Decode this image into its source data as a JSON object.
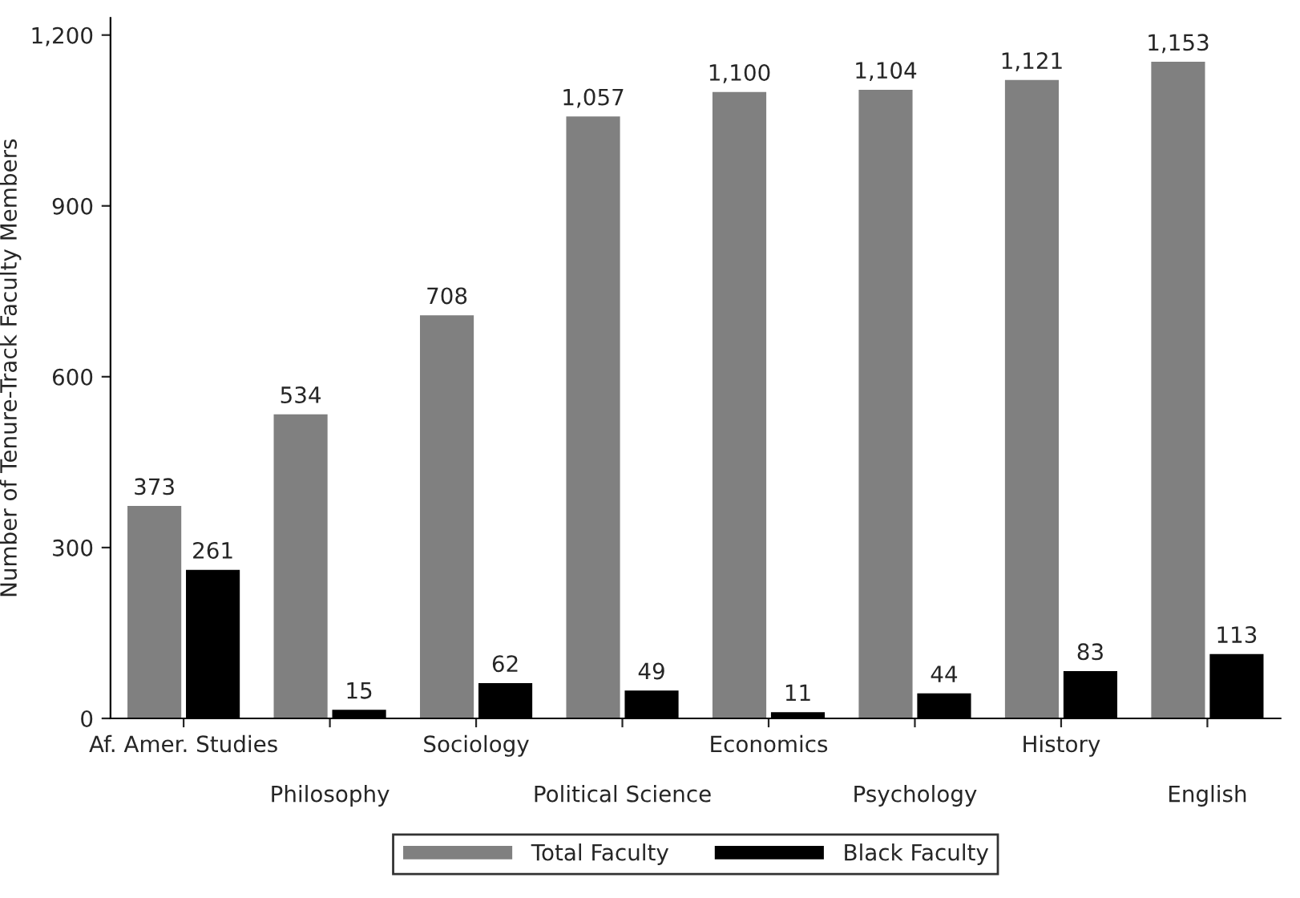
{
  "chart_data": {
    "type": "bar",
    "ylabel": "Number of Tenure-Track Faculty Members",
    "categories": [
      "Af. Amer. Studies",
      "Philosophy",
      "Sociology",
      "Political Science",
      "Economics",
      "Psychology",
      "History",
      "English"
    ],
    "series": [
      {
        "name": "Total Faculty",
        "color": "#808080",
        "values": [
          373,
          534,
          708,
          1057,
          1100,
          1104,
          1121,
          1153
        ],
        "value_labels": [
          "373",
          "534",
          "708",
          "1,057",
          "1,100",
          "1,104",
          "1,121",
          "1,153"
        ]
      },
      {
        "name": "Black Faculty",
        "color": "#000000",
        "values": [
          261,
          15,
          62,
          49,
          11,
          44,
          83,
          113
        ],
        "value_labels": [
          "261",
          "15",
          "62",
          "49",
          "11",
          "44",
          "83",
          "113"
        ]
      }
    ],
    "ylim": [
      0,
      1230
    ],
    "yticks": [
      0,
      300,
      600,
      900,
      {
        "value": 1200,
        "label": "1,200"
      }
    ],
    "grid": false,
    "legend": "bottom"
  }
}
